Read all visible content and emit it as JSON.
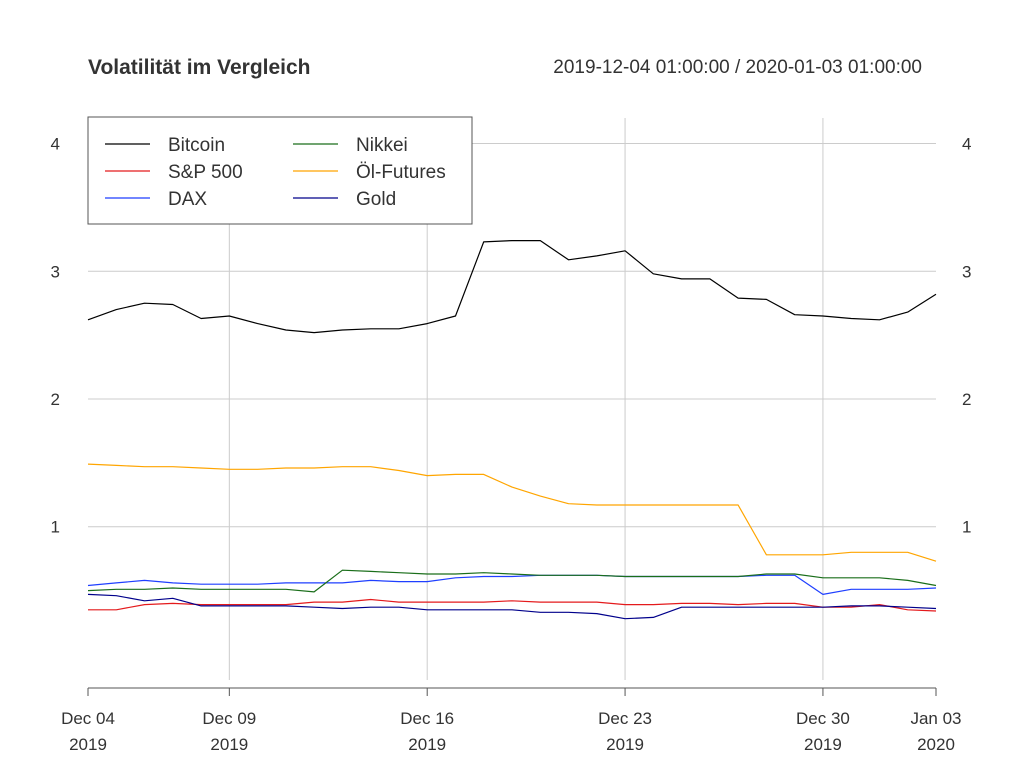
{
  "title": "Volatilität im Vergleich",
  "date_range": "2019-12-04 01:00:00 / 2020-01-03 01:00:00",
  "chart_data": {
    "type": "line",
    "title": "Volatilität im Vergleich",
    "subtitle": "2019-12-04 01:00:00 / 2020-01-03 01:00:00",
    "xlabel": "",
    "ylabel": "",
    "x": [
      "2019-12-04",
      "2019-12-05",
      "2019-12-06",
      "2019-12-07",
      "2019-12-08",
      "2019-12-09",
      "2019-12-10",
      "2019-12-11",
      "2019-12-12",
      "2019-12-13",
      "2019-12-14",
      "2019-12-15",
      "2019-12-16",
      "2019-12-17",
      "2019-12-18",
      "2019-12-19",
      "2019-12-20",
      "2019-12-21",
      "2019-12-22",
      "2019-12-23",
      "2019-12-24",
      "2019-12-25",
      "2019-12-26",
      "2019-12-27",
      "2019-12-28",
      "2019-12-29",
      "2019-12-30",
      "2019-12-31",
      "2020-01-01",
      "2020-01-02",
      "2020-01-03"
    ],
    "xlim": [
      "2019-12-04",
      "2020-01-03"
    ],
    "ylim": [
      -0.2,
      4.2
    ],
    "yticks": [
      1,
      2,
      3,
      4
    ],
    "xticks": [
      {
        "date": "2019-12-04",
        "line1": "Dec 04",
        "line2": "2019"
      },
      {
        "date": "2019-12-09",
        "line1": "Dec 09",
        "line2": "2019"
      },
      {
        "date": "2019-12-16",
        "line1": "Dec 16",
        "line2": "2019"
      },
      {
        "date": "2019-12-23",
        "line1": "Dec 23",
        "line2": "2019"
      },
      {
        "date": "2019-12-30",
        "line1": "Dec 30",
        "line2": "2019"
      },
      {
        "date": "2020-01-03",
        "line1": "Jan 03",
        "line2": "2020"
      }
    ],
    "grid": true,
    "legend_position": "top-left",
    "series": [
      {
        "name": "Bitcoin",
        "color": "#000000",
        "values": [
          2.62,
          2.7,
          2.75,
          2.74,
          2.63,
          2.65,
          2.59,
          2.54,
          2.52,
          2.54,
          2.55,
          2.55,
          2.59,
          2.65,
          3.23,
          3.24,
          3.24,
          3.09,
          3.12,
          3.16,
          2.98,
          2.94,
          2.94,
          2.79,
          2.78,
          2.66,
          2.65,
          2.63,
          2.62,
          2.68,
          2.82
        ]
      },
      {
        "name": "S&P 500",
        "color": "#e41a1c",
        "values": [
          0.35,
          0.35,
          0.39,
          0.4,
          0.39,
          0.39,
          0.39,
          0.39,
          0.41,
          0.41,
          0.43,
          0.41,
          0.41,
          0.41,
          0.41,
          0.42,
          0.41,
          0.41,
          0.41,
          0.39,
          0.39,
          0.4,
          0.4,
          0.39,
          0.4,
          0.4,
          0.37,
          0.37,
          0.39,
          0.35,
          0.34
        ]
      },
      {
        "name": "DAX",
        "color": "#1f3fff",
        "values": [
          0.54,
          0.56,
          0.58,
          0.56,
          0.55,
          0.55,
          0.55,
          0.56,
          0.56,
          0.56,
          0.58,
          0.57,
          0.57,
          0.6,
          0.61,
          0.61,
          0.62,
          0.62,
          0.62,
          0.61,
          0.61,
          0.61,
          0.61,
          0.61,
          0.62,
          0.62,
          0.47,
          0.51,
          0.51,
          0.51,
          0.52
        ]
      },
      {
        "name": "Nikkei",
        "color": "#1a6e1a",
        "values": [
          0.5,
          0.51,
          0.51,
          0.52,
          0.51,
          0.51,
          0.51,
          0.51,
          0.49,
          0.66,
          0.65,
          0.64,
          0.63,
          0.63,
          0.64,
          0.63,
          0.62,
          0.62,
          0.62,
          0.61,
          0.61,
          0.61,
          0.61,
          0.61,
          0.63,
          0.63,
          0.6,
          0.6,
          0.6,
          0.58,
          0.54
        ]
      },
      {
        "name": "Öl-Futures",
        "color": "#ffa500",
        "values": [
          1.49,
          1.48,
          1.47,
          1.47,
          1.46,
          1.45,
          1.45,
          1.46,
          1.46,
          1.47,
          1.47,
          1.44,
          1.4,
          1.41,
          1.41,
          1.31,
          1.24,
          1.18,
          1.17,
          1.17,
          1.17,
          1.17,
          1.17,
          1.17,
          0.78,
          0.78,
          0.78,
          0.8,
          0.8,
          0.8,
          0.73
        ]
      },
      {
        "name": "Gold",
        "color": "#00008b",
        "values": [
          0.47,
          0.46,
          0.42,
          0.44,
          0.38,
          0.38,
          0.38,
          0.38,
          0.37,
          0.36,
          0.37,
          0.37,
          0.35,
          0.35,
          0.35,
          0.35,
          0.33,
          0.33,
          0.32,
          0.28,
          0.29,
          0.37,
          0.37,
          0.37,
          0.37,
          0.37,
          0.37,
          0.38,
          0.38,
          0.37,
          0.36
        ]
      }
    ]
  }
}
